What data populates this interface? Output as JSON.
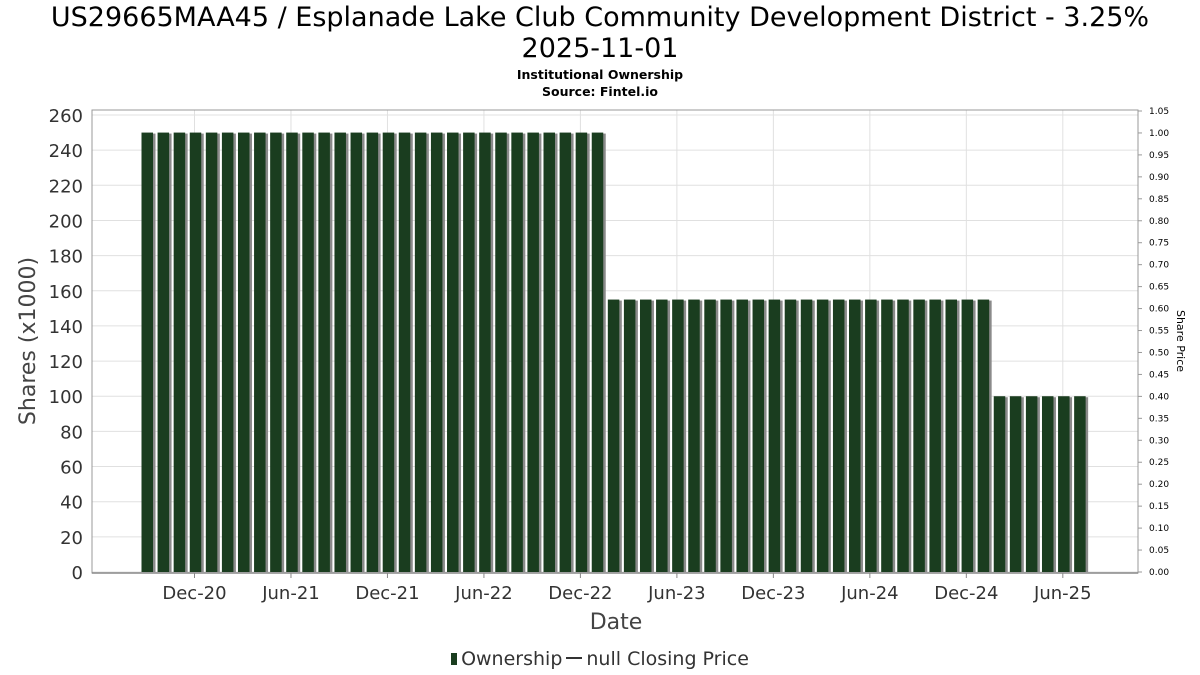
{
  "header": {
    "title_line1": "US29665MAA45 / Esplanade Lake Club Community Development District - 3.25%",
    "title_line2": "2025-11-01",
    "subtitle1": "Institutional Ownership",
    "subtitle2": "Source: Fintel.io"
  },
  "legend": {
    "ownership": "Ownership",
    "price": "null Closing Price"
  },
  "colors": {
    "bar": "#1a3d1f",
    "bar_shadow": "#8a8a8a",
    "grid": "#e0e0e0"
  },
  "chart_data": {
    "type": "bar",
    "xlabel": "Date",
    "ylabel": "Shares (x1000)",
    "y2label": "Share Price",
    "ylim": [
      0,
      260
    ],
    "y2lim": [
      0,
      1.05
    ],
    "yticks": [
      "0",
      "20",
      "40",
      "60",
      "80",
      "100",
      "120",
      "140",
      "160",
      "180",
      "200",
      "220",
      "240",
      "260"
    ],
    "y2ticks": [
      "0.00",
      "0.05",
      "0.10",
      "0.15",
      "0.20",
      "0.25",
      "0.30",
      "0.35",
      "0.40",
      "0.45",
      "0.50",
      "0.55",
      "0.60",
      "0.65",
      "0.70",
      "0.75",
      "0.80",
      "0.85",
      "0.90",
      "0.95",
      "1.00",
      "1.05"
    ],
    "xticks": [
      "Dec-20",
      "Jun-21",
      "Dec-21",
      "Jun-22",
      "Dec-22",
      "Jun-23",
      "Dec-23",
      "Jun-24",
      "Dec-24",
      "Jun-25"
    ],
    "grid": true,
    "legend_position": "bottom",
    "series": [
      {
        "name": "Ownership",
        "values": [
          250,
          250,
          250,
          250,
          250,
          250,
          250,
          250,
          250,
          250,
          250,
          250,
          250,
          250,
          250,
          250,
          250,
          250,
          250,
          250,
          250,
          250,
          250,
          250,
          250,
          250,
          250,
          250,
          250,
          155,
          155,
          155,
          155,
          155,
          155,
          155,
          155,
          155,
          155,
          155,
          155,
          155,
          155,
          155,
          155,
          155,
          155,
          155,
          155,
          155,
          155,
          155,
          155,
          100,
          100,
          100,
          100,
          100,
          100
        ]
      }
    ]
  }
}
